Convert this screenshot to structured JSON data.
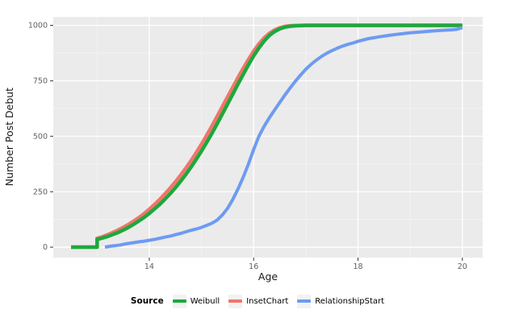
{
  "legend": {
    "title": "Source",
    "position": "bottom",
    "key_background": "#F2F2F2"
  },
  "panel": {
    "background": "#EBEBEB",
    "grid_major_color": "#FFFFFF",
    "grid_minor_color": "#F3F3F3",
    "tick_mark_color": "#333333",
    "tick_label_color": "#606060",
    "axis_title_color": "#1a1a1a"
  },
  "chart_data": {
    "type": "line",
    "xlabel": "Age",
    "ylabel": "Number Post Debut",
    "xlim": [
      12.16,
      20.39
    ],
    "ylim": [
      -47,
      1038
    ],
    "x_ticks": [
      14,
      16,
      18,
      20
    ],
    "x_minor_ticks": [
      13,
      15,
      17,
      19
    ],
    "y_ticks": [
      0,
      250,
      500,
      750,
      1000
    ],
    "y_minor_ticks": [
      125,
      375,
      625,
      875
    ],
    "grid": true,
    "legend_position": "bottom",
    "draw_order": [
      "InsetChart",
      "Weibull",
      "RelationshipStart"
    ],
    "series": [
      {
        "name": "Weibull",
        "color": "#1BA93C",
        "stroke_width": 4.5,
        "points": [
          [
            12.5,
            0
          ],
          [
            13.0,
            0
          ],
          [
            13.0,
            35
          ],
          [
            13.1,
            41
          ],
          [
            13.2,
            48
          ],
          [
            13.3,
            57
          ],
          [
            13.4,
            66
          ],
          [
            13.5,
            77
          ],
          [
            13.6,
            89
          ],
          [
            13.7,
            103
          ],
          [
            13.8,
            118
          ],
          [
            13.9,
            134
          ],
          [
            14.0,
            152
          ],
          [
            14.1,
            172
          ],
          [
            14.2,
            193
          ],
          [
            14.3,
            216
          ],
          [
            14.4,
            241
          ],
          [
            14.5,
            268
          ],
          [
            14.6,
            297
          ],
          [
            14.7,
            328
          ],
          [
            14.8,
            361
          ],
          [
            14.9,
            396
          ],
          [
            15.0,
            433
          ],
          [
            15.1,
            472
          ],
          [
            15.2,
            513
          ],
          [
            15.3,
            556
          ],
          [
            15.4,
            600
          ],
          [
            15.5,
            645
          ],
          [
            15.6,
            690
          ],
          [
            15.7,
            735
          ],
          [
            15.8,
            779
          ],
          [
            15.9,
            822
          ],
          [
            16.0,
            862
          ],
          [
            16.1,
            898
          ],
          [
            16.2,
            929
          ],
          [
            16.3,
            954
          ],
          [
            16.4,
            972
          ],
          [
            16.5,
            984
          ],
          [
            16.6,
            992
          ],
          [
            16.7,
            996
          ],
          [
            16.8,
            998
          ],
          [
            17.0,
            1000
          ],
          [
            17.5,
            1000
          ],
          [
            18.0,
            1000
          ],
          [
            18.5,
            1000
          ],
          [
            19.0,
            1000
          ],
          [
            19.5,
            1000
          ],
          [
            20.0,
            1000
          ]
        ]
      },
      {
        "name": "InsetChart",
        "color": "#F0756B",
        "stroke_width": 4.5,
        "points": [
          [
            12.5,
            0
          ],
          [
            13.0,
            0
          ],
          [
            13.0,
            40
          ],
          [
            13.1,
            47
          ],
          [
            13.2,
            56
          ],
          [
            13.3,
            66
          ],
          [
            13.4,
            77
          ],
          [
            13.5,
            89
          ],
          [
            13.6,
            102
          ],
          [
            13.7,
            117
          ],
          [
            13.8,
            133
          ],
          [
            13.9,
            151
          ],
          [
            14.0,
            171
          ],
          [
            14.1,
            192
          ],
          [
            14.2,
            215
          ],
          [
            14.3,
            240
          ],
          [
            14.4,
            266
          ],
          [
            14.5,
            294
          ],
          [
            14.6,
            324
          ],
          [
            14.7,
            356
          ],
          [
            14.8,
            390
          ],
          [
            14.9,
            426
          ],
          [
            15.0,
            464
          ],
          [
            15.1,
            504
          ],
          [
            15.2,
            546
          ],
          [
            15.3,
            589
          ],
          [
            15.4,
            633
          ],
          [
            15.5,
            677
          ],
          [
            15.6,
            721
          ],
          [
            15.7,
            764
          ],
          [
            15.8,
            806
          ],
          [
            15.9,
            846
          ],
          [
            16.0,
            883
          ],
          [
            16.1,
            916
          ],
          [
            16.2,
            943
          ],
          [
            16.3,
            964
          ],
          [
            16.4,
            979
          ],
          [
            16.5,
            989
          ],
          [
            16.6,
            995
          ],
          [
            16.7,
            998
          ],
          [
            16.8,
            999
          ],
          [
            17.0,
            1000
          ],
          [
            18.0,
            1000
          ],
          [
            19.0,
            1000
          ],
          [
            20.0,
            1000
          ]
        ]
      },
      {
        "name": "RelationshipStart",
        "color": "#6D9BF1",
        "stroke_width": 4,
        "points": [
          [
            13.15,
            0
          ],
          [
            13.25,
            4
          ],
          [
            13.35,
            7
          ],
          [
            13.45,
            10
          ],
          [
            13.5,
            13
          ],
          [
            13.6,
            17
          ],
          [
            13.7,
            20
          ],
          [
            13.8,
            24
          ],
          [
            13.9,
            27
          ],
          [
            14.0,
            31
          ],
          [
            14.1,
            35
          ],
          [
            14.2,
            40
          ],
          [
            14.3,
            45
          ],
          [
            14.4,
            50
          ],
          [
            14.5,
            56
          ],
          [
            14.6,
            62
          ],
          [
            14.7,
            69
          ],
          [
            14.8,
            76
          ],
          [
            14.9,
            82
          ],
          [
            15.0,
            89
          ],
          [
            15.1,
            98
          ],
          [
            15.2,
            108
          ],
          [
            15.3,
            122
          ],
          [
            15.4,
            145
          ],
          [
            15.5,
            175
          ],
          [
            15.6,
            215
          ],
          [
            15.7,
            262
          ],
          [
            15.8,
            315
          ],
          [
            15.9,
            375
          ],
          [
            16.0,
            440
          ],
          [
            16.1,
            500
          ],
          [
            16.2,
            545
          ],
          [
            16.3,
            583
          ],
          [
            16.4,
            618
          ],
          [
            16.5,
            652
          ],
          [
            16.6,
            686
          ],
          [
            16.7,
            718
          ],
          [
            16.8,
            748
          ],
          [
            16.9,
            776
          ],
          [
            17.0,
            802
          ],
          [
            17.1,
            824
          ],
          [
            17.2,
            843
          ],
          [
            17.3,
            860
          ],
          [
            17.4,
            874
          ],
          [
            17.5,
            886
          ],
          [
            17.6,
            897
          ],
          [
            17.7,
            906
          ],
          [
            17.8,
            914
          ],
          [
            17.9,
            920
          ],
          [
            18.0,
            928
          ],
          [
            18.2,
            940
          ],
          [
            18.4,
            948
          ],
          [
            18.6,
            955
          ],
          [
            18.8,
            961
          ],
          [
            19.0,
            966
          ],
          [
            19.2,
            970
          ],
          [
            19.4,
            974
          ],
          [
            19.6,
            977
          ],
          [
            19.8,
            980
          ],
          [
            19.9,
            982
          ],
          [
            20.0,
            990
          ]
        ]
      }
    ]
  }
}
